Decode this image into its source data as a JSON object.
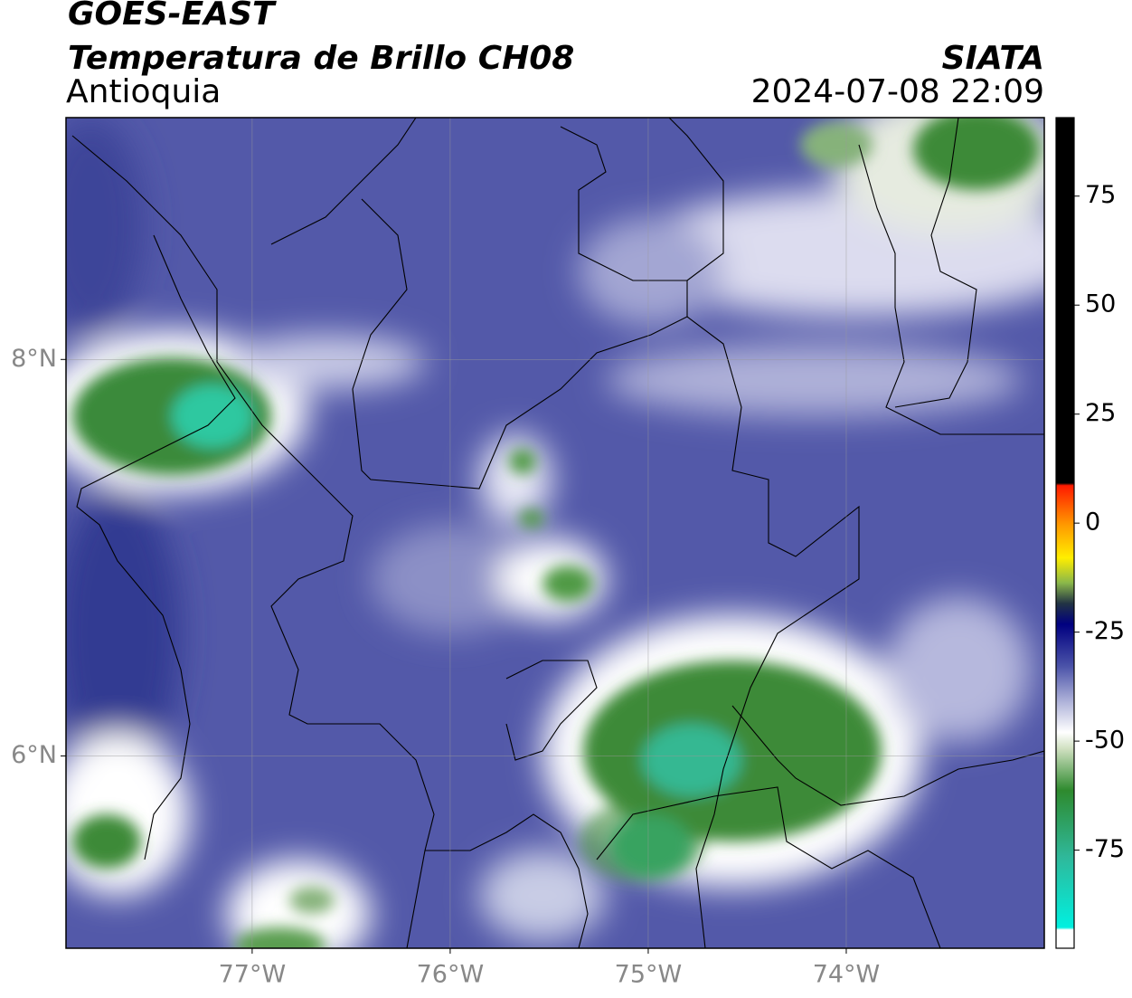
{
  "header": {
    "title": "GOES-EAST",
    "subtitle": "Temperatura de Brillo CH08",
    "region": "Antioquia",
    "source": "SIATA",
    "datetime": "2024-07-08 22:09"
  },
  "map": {
    "xlim": [
      -77.94,
      -73.0
    ],
    "ylim": [
      5.03,
      9.22
    ],
    "xticks": [
      {
        "value": -77,
        "label": "77°W"
      },
      {
        "value": -76,
        "label": "76°W"
      },
      {
        "value": -75,
        "label": "75°W"
      },
      {
        "value": -74,
        "label": "74°W"
      }
    ],
    "yticks": [
      {
        "value": 8,
        "label": "8°N"
      },
      {
        "value": 6,
        "label": "6°N"
      }
    ],
    "grid": true,
    "colorbar": {
      "lim": [
        -97.5,
        93
      ],
      "ticks": [
        75,
        50,
        25,
        0,
        -25,
        -50,
        -75
      ]
    }
  }
}
